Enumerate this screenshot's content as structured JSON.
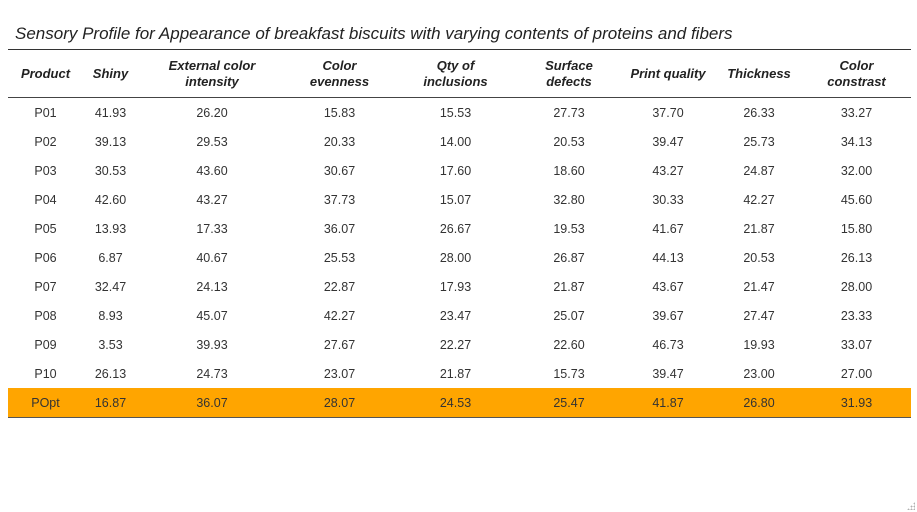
{
  "title": "Sensory Profile for Appearance of breakfast biscuits with varying contents of proteins and fibers",
  "columns": [
    {
      "line1": "Product",
      "line2": ""
    },
    {
      "line1": "Shiny",
      "line2": ""
    },
    {
      "line1": "External color",
      "line2": "intensity"
    },
    {
      "line1": "Color",
      "line2": "evenness"
    },
    {
      "line1": "Qty of",
      "line2": "inclusions"
    },
    {
      "line1": "Surface",
      "line2": "defects"
    },
    {
      "line1": "Print quality",
      "line2": ""
    },
    {
      "line1": "Thickness",
      "line2": ""
    },
    {
      "line1": "Color",
      "line2": "constrast"
    }
  ],
  "rows": [
    [
      "P01",
      "41.93",
      "26.20",
      "15.83",
      "15.53",
      "27.73",
      "37.70",
      "26.33",
      "33.27"
    ],
    [
      "P02",
      "39.13",
      "29.53",
      "20.33",
      "14.00",
      "20.53",
      "39.47",
      "25.73",
      "34.13"
    ],
    [
      "P03",
      "30.53",
      "43.60",
      "30.67",
      "17.60",
      "18.60",
      "43.27",
      "24.87",
      "32.00"
    ],
    [
      "P04",
      "42.60",
      "43.27",
      "37.73",
      "15.07",
      "32.80",
      "30.33",
      "42.27",
      "45.60"
    ],
    [
      "P05",
      "13.93",
      "17.33",
      "36.07",
      "26.67",
      "19.53",
      "41.67",
      "21.87",
      "15.80"
    ],
    [
      "P06",
      "6.87",
      "40.67",
      "25.53",
      "28.00",
      "26.87",
      "44.13",
      "20.53",
      "26.13"
    ],
    [
      "P07",
      "32.47",
      "24.13",
      "22.87",
      "17.93",
      "21.87",
      "43.67",
      "21.47",
      "28.00"
    ],
    [
      "P08",
      "8.93",
      "45.07",
      "42.27",
      "23.47",
      "25.07",
      "39.67",
      "27.47",
      "23.33"
    ],
    [
      "P09",
      "3.53",
      "39.93",
      "27.67",
      "22.27",
      "22.60",
      "46.73",
      "19.93",
      "33.07"
    ],
    [
      "P10",
      "26.13",
      "24.73",
      "23.07",
      "21.87",
      "15.73",
      "39.47",
      "23.00",
      "27.00"
    ],
    [
      "POpt",
      "16.87",
      "36.07",
      "28.07",
      "24.53",
      "25.47",
      "41.87",
      "26.80",
      "31.93"
    ]
  ],
  "highlight_row": "POpt",
  "highlight_color": "#ffa500"
}
